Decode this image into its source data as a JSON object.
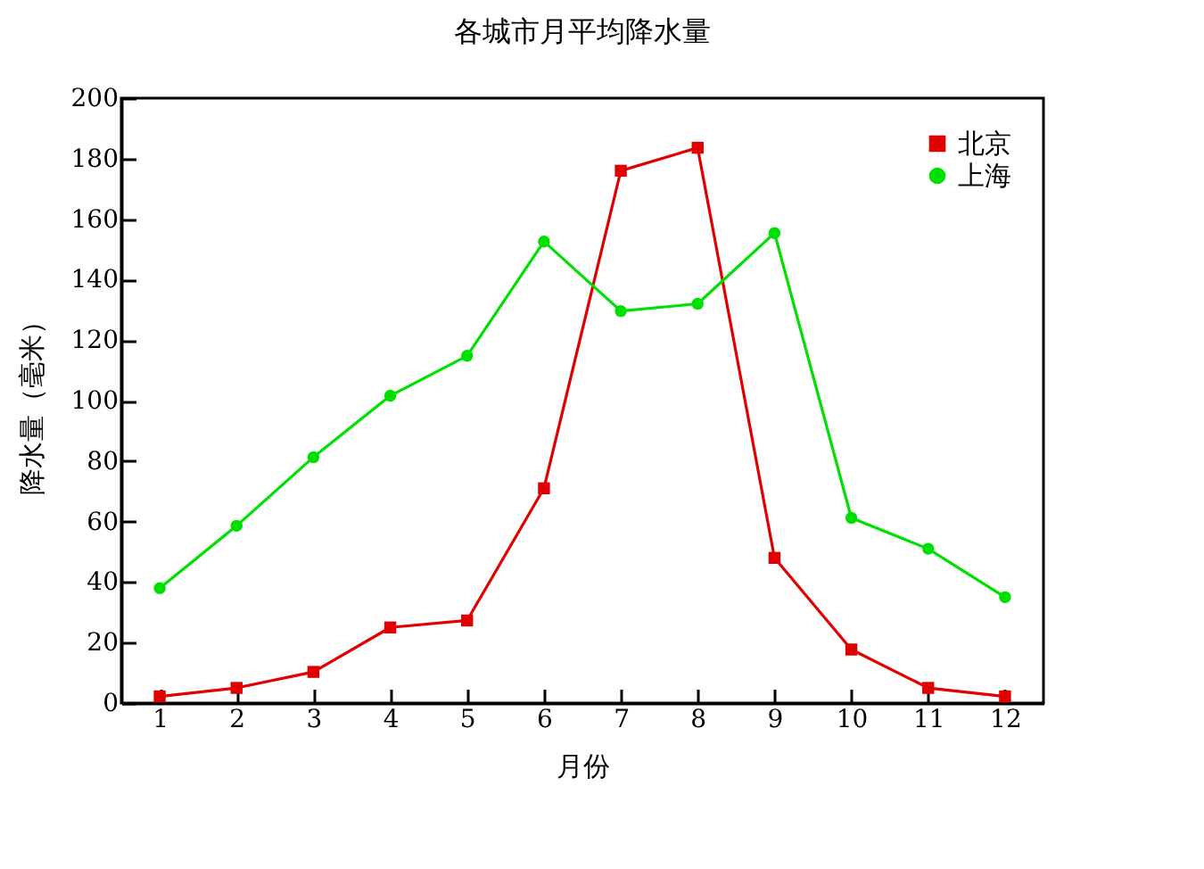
{
  "chart_data": {
    "type": "line",
    "title": "各城市月平均降水量",
    "xlabel": "月份",
    "ylabel": "降水量（毫米）",
    "x": [
      1,
      2,
      3,
      4,
      5,
      6,
      7,
      8,
      9,
      10,
      11,
      12
    ],
    "series": [
      {
        "name": "北京",
        "color": "#e00000",
        "marker": "square",
        "values": [
          2.2,
          5,
          10.3,
          25,
          27.3,
          71,
          176,
          183.6,
          48,
          17.7,
          5,
          2.2
        ]
      },
      {
        "name": "上海",
        "color": "#00e000",
        "marker": "circle",
        "values": [
          38,
          58.6,
          81.3,
          101.6,
          114.8,
          152.6,
          129.6,
          132,
          155.4,
          61.2,
          51,
          35
        ]
      }
    ],
    "xlim": [
      0.5,
      12.5
    ],
    "xticks": [
      1,
      2,
      3,
      4,
      5,
      6,
      7,
      8,
      9,
      10,
      11,
      12
    ],
    "ylim": [
      0,
      200
    ],
    "yticks": [
      0,
      20,
      40,
      60,
      80,
      100,
      120,
      140,
      160,
      180,
      200
    ],
    "grid": false,
    "legend": "top right",
    "line_style": "solid"
  }
}
